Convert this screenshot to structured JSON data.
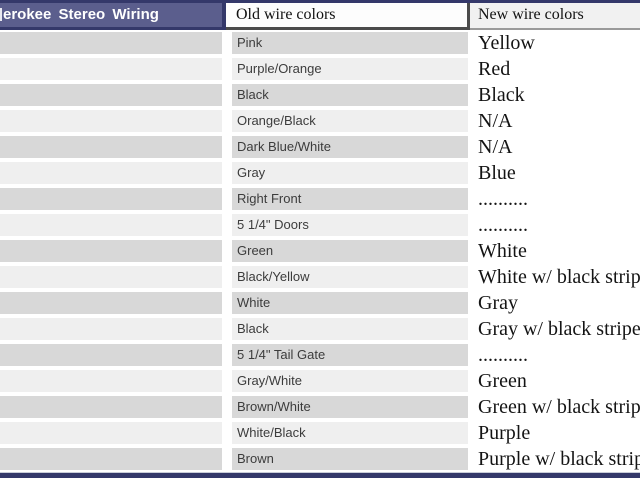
{
  "header": {
    "title": "erokee Stereo Wiring",
    "col_old": "Old wire colors",
    "col_new": "New wire colors"
  },
  "table": {
    "rows": [
      {
        "old": "Pink",
        "new": "Yellow"
      },
      {
        "old": "Purple/Orange",
        "new": "Red"
      },
      {
        "old": "Black",
        "new": "Black"
      },
      {
        "old": "Orange/Black",
        "new": "N/A"
      },
      {
        "old": "Dark Blue/White",
        "new": "N/A"
      },
      {
        "old": "Gray",
        "new": "Blue"
      },
      {
        "old": "Right Front",
        "new": ".........."
      },
      {
        "old": "5 1/4\" Doors",
        "new": ".........."
      },
      {
        "old": "Green",
        "new": "White"
      },
      {
        "old": "Black/Yellow",
        "new": "White w/ black stripe"
      },
      {
        "old": "White",
        "new": "Gray"
      },
      {
        "old": "Black",
        "new": "Gray w/ black stripe"
      },
      {
        "old": "5 1/4\" Tail Gate",
        "new": ".........."
      },
      {
        "old": "Gray/White",
        "new": "Green"
      },
      {
        "old": "Brown/White",
        "new": "Green w/ black stripe"
      },
      {
        "old": "White/Black",
        "new": "Purple"
      },
      {
        "old": "Brown",
        "new": "Purple w/ black stripe"
      }
    ]
  },
  "colors": {
    "accent_navy": "#34386a",
    "title_bar": "#5b5e8d",
    "stripe_dark": "#d8d8d8",
    "stripe_light": "#efefef",
    "header_border_dark": "#4b4b4b"
  }
}
